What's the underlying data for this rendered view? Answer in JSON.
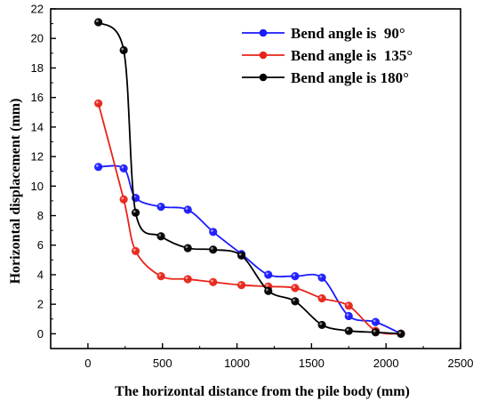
{
  "chart_data": {
    "type": "line",
    "xlabel": "The horizontal distance from the pile body (mm)",
    "ylabel": "Horizontal displacement (mm)",
    "xlim": [
      -250,
      2500
    ],
    "ylim": [
      -1,
      22
    ],
    "xticks": [
      0,
      500,
      1000,
      1500,
      2000,
      2500
    ],
    "yticks": [
      0,
      2,
      4,
      6,
      8,
      10,
      12,
      14,
      16,
      18,
      20,
      22
    ],
    "xtick_labels": [
      "0",
      "500",
      "1000",
      "1500",
      "2000",
      "2500"
    ],
    "ytick_labels": [
      "0",
      "2",
      "4",
      "6",
      "8",
      "10",
      "12",
      "14",
      "16",
      "18",
      "20",
      "22"
    ],
    "grid": false,
    "legend_position": "top-right",
    "series": [
      {
        "name": "Bend angle is  90°",
        "color": "#1a1aff",
        "x": [
          70,
          240,
          320,
          490,
          670,
          840,
          1030,
          1210,
          1390,
          1570,
          1750,
          1930,
          2100
        ],
        "y": [
          11.3,
          11.2,
          9.2,
          8.6,
          8.4,
          6.9,
          5.4,
          4.0,
          3.9,
          3.8,
          1.2,
          0.8,
          0.0
        ]
      },
      {
        "name": "Bend angle is  135°",
        "color": "#e8241a",
        "x": [
          70,
          240,
          320,
          490,
          670,
          840,
          1030,
          1210,
          1390,
          1570,
          1750,
          1930,
          2100
        ],
        "y": [
          15.6,
          9.1,
          5.6,
          3.9,
          3.7,
          3.5,
          3.3,
          3.2,
          3.1,
          2.4,
          1.9,
          0.2,
          0.0
        ]
      },
      {
        "name": "Bend angle is 180°",
        "color": "#000000",
        "x": [
          70,
          240,
          320,
          490,
          670,
          840,
          1030,
          1210,
          1390,
          1570,
          1750,
          1930,
          2100
        ],
        "y": [
          21.1,
          19.2,
          8.2,
          6.6,
          5.8,
          5.7,
          5.3,
          2.9,
          2.2,
          0.6,
          0.2,
          0.1,
          0.0
        ]
      }
    ]
  }
}
